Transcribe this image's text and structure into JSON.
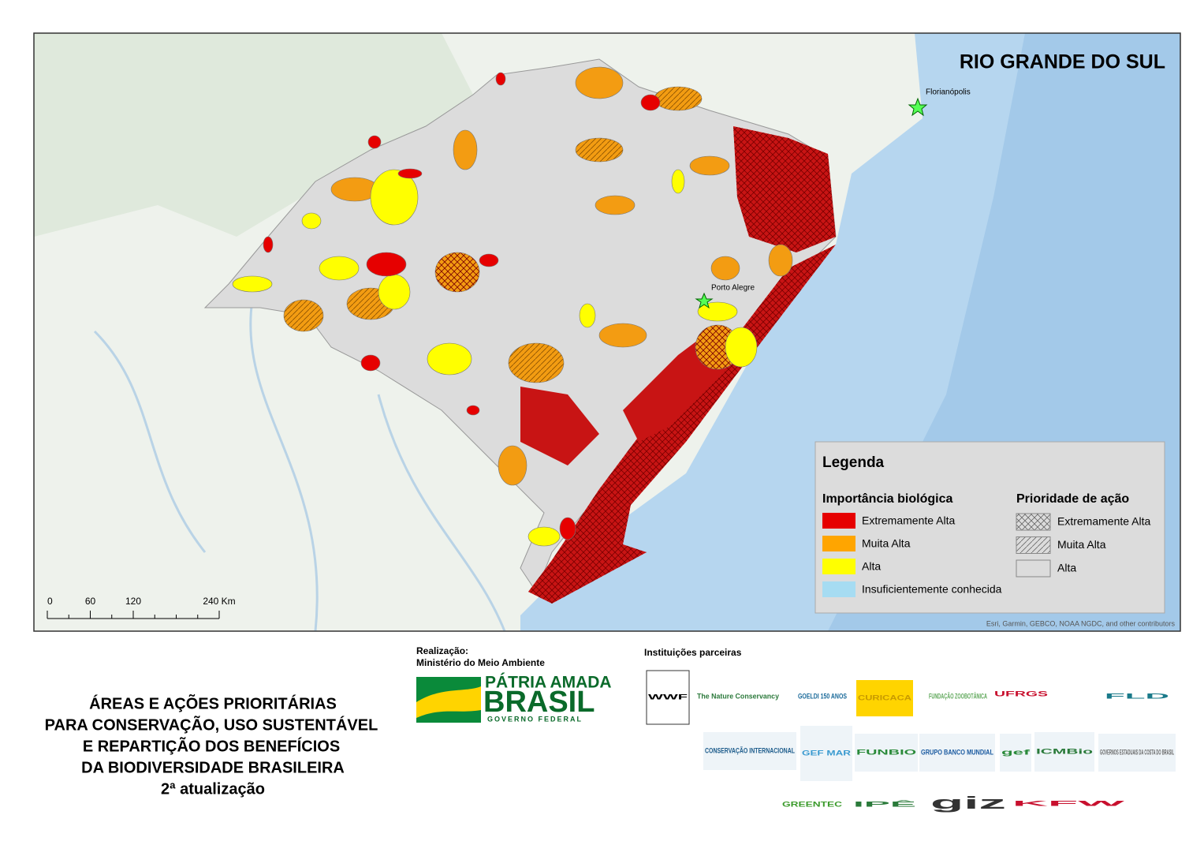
{
  "map": {
    "title": "RIO GRANDE DO SUL",
    "places": [
      "Florianópolis",
      "Porto Alegre"
    ],
    "attribution": "Esri, Garmin, GEBCO, NOAA NGDC, and other contributors",
    "scale": {
      "ticks": [
        0,
        60,
        120,
        {
          "value": 240,
          "label": "240 Km"
        }
      ]
    },
    "legend": {
      "title": "Legenda",
      "importance": {
        "title": "Importância biológica",
        "items": [
          {
            "label": "Extremamente Alta",
            "color": "#e60000"
          },
          {
            "label": "Muita Alta",
            "color": "#ffa500"
          },
          {
            "label": "Alta",
            "color": "#ffff00"
          },
          {
            "label": "Insuficientemente conhecida",
            "color": "#a6dcf2"
          }
        ]
      },
      "priority": {
        "title": "Prioridade de ação",
        "items": [
          {
            "label": "Extremamente Alta",
            "pattern": "crosshatch"
          },
          {
            "label": "Muita Alta",
            "pattern": "diagonal"
          },
          {
            "label": "Alta",
            "pattern": "none"
          }
        ]
      }
    }
  },
  "footer": {
    "title_lines": [
      "ÁREAS E AÇÕES PRIORITÁRIAS",
      "PARA CONSERVAÇÃO, USO SUSTENTÁVEL",
      "E REPARTIÇÃO DOS BENEFÍCIOS",
      "DA BIODIVERSIDADE BRASILEIRA",
      "2ª atualização"
    ],
    "realizacao": "Realização:",
    "ministerio": "Ministério do Meio Ambiente",
    "brand": [
      "PÁTRIA AMADA",
      "BRASIL",
      "GOVERNO FEDERAL"
    ],
    "partners_title": "Instituições parceiras",
    "partners": [
      "WWF",
      "The Nature Conservancy",
      "GOELDI 150 ANOS",
      "CURICACA",
      "FUNDAÇÃO ZOOBOTÂNICA",
      "UFRGS",
      "FLD",
      "CONSERVAÇÃO INTERNACIONAL",
      "GEF MAR",
      "FUNBIO",
      "GRUPO BANCO MUNDIAL",
      "gef",
      "ICMBio",
      "GOVERNOS ESTADUAIS DA COSTA DO BRASIL",
      "GREENTEC",
      "IPÊ",
      "giz",
      "KFW"
    ]
  }
}
